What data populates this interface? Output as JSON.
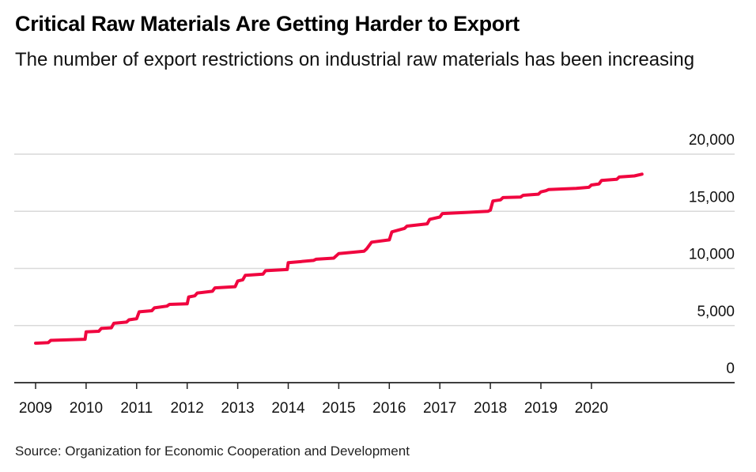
{
  "header": {
    "title": "Critical Raw Materials Are Getting Harder to Export",
    "subtitle": "The number of export restrictions on industrial raw materials has been increasing"
  },
  "footer": {
    "source": "Source: Organization for Economic Cooperation and Development"
  },
  "colors": {
    "line": "#f0053f",
    "grid": "#d9d9d9",
    "axis": "#222222"
  },
  "chart_data": {
    "type": "line",
    "title": "Critical Raw Materials Are Getting Harder to Export",
    "subtitle": "The number of export restrictions on industrial raw materials has been increasing",
    "xlabel": "",
    "ylabel": "",
    "xlim": [
      2009,
      2021.1
    ],
    "ylim": [
      0,
      20000
    ],
    "grid": true,
    "y_axis_side": "right",
    "legend": "none",
    "x_ticks": [
      "2009",
      "2010",
      "2011",
      "2012",
      "2013",
      "2014",
      "2015",
      "2016",
      "2017",
      "2018",
      "2019",
      "2020"
    ],
    "y_ticks": [
      "0",
      "5,000",
      "10,000",
      "15,000",
      "20,000"
    ],
    "y_tick_values": [
      0,
      5000,
      10000,
      15000,
      20000
    ],
    "series": [
      {
        "name": "Export restrictions on industrial raw materials",
        "x": [
          2009.0,
          2009.25,
          2009.3,
          2009.98,
          2010.0,
          2010.25,
          2010.3,
          2010.5,
          2010.55,
          2010.8,
          2010.85,
          2011.0,
          2011.05,
          2011.3,
          2011.35,
          2011.6,
          2011.65,
          2012.0,
          2012.03,
          2012.15,
          2012.2,
          2012.5,
          2012.55,
          2012.95,
          2013.0,
          2013.1,
          2013.15,
          2013.5,
          2013.55,
          2013.98,
          2014.0,
          2014.5,
          2014.55,
          2014.9,
          2015.0,
          2015.5,
          2015.55,
          2015.65,
          2016.0,
          2016.05,
          2016.3,
          2016.35,
          2016.75,
          2016.8,
          2017.0,
          2017.05,
          2017.5,
          2017.95,
          2018.0,
          2018.05,
          2018.2,
          2018.25,
          2018.6,
          2018.65,
          2018.95,
          2019.0,
          2019.1,
          2019.15,
          2019.7,
          2019.95,
          2020.0,
          2020.15,
          2020.2,
          2020.5,
          2020.55,
          2020.85,
          2021.0
        ],
        "values": [
          3450,
          3500,
          3700,
          3800,
          4450,
          4500,
          4750,
          4800,
          5200,
          5300,
          5500,
          5600,
          6200,
          6300,
          6550,
          6700,
          6850,
          6900,
          7500,
          7600,
          7850,
          8000,
          8300,
          8400,
          8900,
          9000,
          9400,
          9500,
          9800,
          9900,
          10500,
          10700,
          10800,
          10900,
          11300,
          11500,
          11700,
          12300,
          12500,
          13200,
          13500,
          13700,
          13900,
          14300,
          14500,
          14800,
          14900,
          15000,
          15100,
          15900,
          16000,
          16200,
          16250,
          16400,
          16500,
          16700,
          16800,
          16900,
          17000,
          17100,
          17300,
          17400,
          17700,
          17800,
          18000,
          18100,
          18250
        ]
      }
    ]
  }
}
